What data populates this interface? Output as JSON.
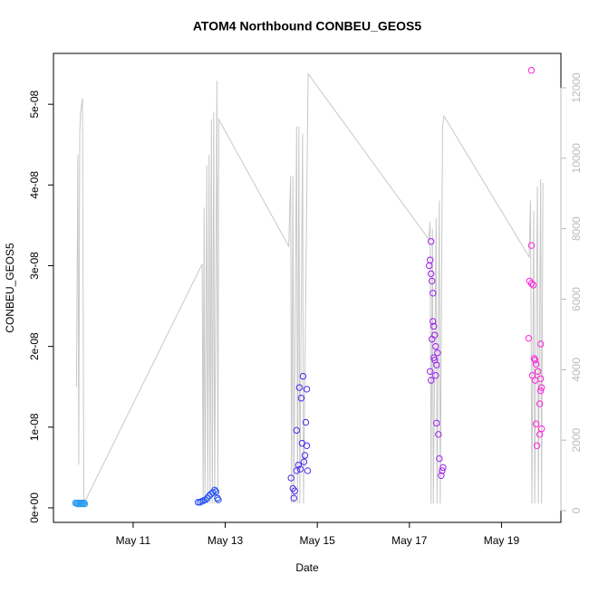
{
  "chart_data": {
    "type": "scatter",
    "title": "ATOM4 Northbound CONBEU_GEOS5",
    "xlabel": "Date",
    "ylabel": "CONBEU_GEOS5",
    "xlim": [
      9.27,
      20.29
    ],
    "ylim": [
      -1.8e-09,
      5.63e-08
    ],
    "y2lim": [
      -334,
      12975
    ],
    "xticks": [
      {
        "value": 11,
        "label": "May 11"
      },
      {
        "value": 13,
        "label": "May 13"
      },
      {
        "value": 15,
        "label": "May 15"
      },
      {
        "value": 17,
        "label": "May 17"
      },
      {
        "value": 19,
        "label": "May 19"
      }
    ],
    "yticks": [
      {
        "value": 0,
        "label": "0e+00"
      },
      {
        "value": 1e-08,
        "label": "1e-08"
      },
      {
        "value": 2e-08,
        "label": "2e-08"
      },
      {
        "value": 3e-08,
        "label": "3e-08"
      },
      {
        "value": 4e-08,
        "label": "4e-08"
      },
      {
        "value": 5e-08,
        "label": "5e-08"
      }
    ],
    "y2ticks": [
      0,
      2000,
      4000,
      6000,
      8000,
      10000,
      12000
    ],
    "y2color": "#bbbbbb",
    "series": [
      {
        "type": "line",
        "axis": "y2",
        "color": "#c8c8c8",
        "x": [
          9.77,
          9.8,
          9.82,
          9.84,
          9.86,
          9.9,
          9.93,
          12.5,
          12.52,
          12.54,
          12.56,
          12.6,
          12.62,
          12.65,
          12.67,
          12.7,
          12.72,
          12.75,
          12.77,
          12.82,
          12.84,
          12.86,
          14.38,
          14.42,
          14.44,
          14.47,
          14.49,
          14.55,
          14.57,
          14.6,
          14.62,
          14.68,
          14.7,
          14.8,
          17.42,
          17.45,
          17.47,
          17.5,
          17.52,
          17.58,
          17.6,
          17.65,
          17.67,
          17.72,
          17.75,
          19.6,
          19.63,
          19.66,
          19.7,
          19.72,
          19.78,
          19.8,
          19.85,
          19.87,
          19.9
        ],
        "values": [
          3500,
          10100,
          1300,
          10700,
          11300,
          11700,
          200,
          7000,
          200,
          8600,
          200,
          9800,
          200,
          10100,
          200,
          11100,
          200,
          11300,
          200,
          12200,
          200,
          11100,
          7500,
          9500,
          200,
          9500,
          200,
          10900,
          200,
          10900,
          200,
          10700,
          200,
          12400,
          7700,
          8200,
          200,
          8000,
          200,
          8300,
          200,
          8800,
          200,
          10900,
          11200,
          7200,
          8800,
          200,
          8500,
          200,
          9200,
          200,
          9400,
          200,
          9300
        ]
      },
      {
        "type": "scatter",
        "color": "#2b9cf0",
        "x": [
          9.75,
          9.77,
          9.79,
          9.81,
          9.83,
          9.85,
          9.87,
          9.89,
          9.91,
          9.93,
          9.95
        ],
        "values": [
          6e-10,
          6e-10,
          5e-10,
          6e-10,
          5e-10,
          6e-10,
          5e-10,
          6e-10,
          5e-10,
          6e-10,
          5e-10
        ]
      },
      {
        "type": "scatter",
        "color": "#1c4cf5",
        "x": [
          12.41,
          12.45,
          12.49,
          12.53,
          12.57,
          12.61,
          12.65,
          12.69,
          12.73,
          12.77,
          12.8,
          12.83,
          12.85
        ],
        "values": [
          7e-10,
          7e-10,
          8e-10,
          9e-10,
          1e-09,
          1.2e-09,
          1.5e-09,
          1.7e-09,
          1.9e-09,
          2.2e-09,
          2e-09,
          1.2e-09,
          1e-09
        ]
      },
      {
        "type": "scatter",
        "color": "#4a2cf0",
        "x": [
          14.43,
          14.47,
          14.49,
          14.51,
          14.55,
          14.61,
          14.63,
          14.65,
          14.67,
          14.69,
          14.73,
          14.75,
          14.77,
          14.77,
          14.79,
          14.59,
          14.55,
          14.71
        ],
        "values": [
          3.7e-09,
          2.4e-09,
          1.2e-09,
          2.1e-09,
          9.6e-09,
          1.49e-08,
          4.8e-09,
          1.36e-08,
          8e-09,
          1.63e-08,
          6.5e-09,
          1.06e-08,
          1.47e-08,
          7.7e-09,
          4.6e-09,
          5.3e-09,
          4.6e-09,
          5.7e-09
        ]
      },
      {
        "type": "scatter",
        "color": "#a020f0",
        "x": [
          17.47,
          17.45,
          17.43,
          17.47,
          17.49,
          17.51,
          17.51,
          17.53,
          17.49,
          17.57,
          17.61,
          17.55,
          17.59,
          17.45,
          17.47,
          17.59,
          17.63,
          17.65,
          17.73,
          17.71,
          17.69,
          17.55,
          17.53,
          17.57
        ],
        "values": [
          3.3e-08,
          3.07e-08,
          3e-08,
          2.9e-08,
          2.81e-08,
          2.66e-08,
          2.31e-08,
          2.25e-08,
          2.09e-08,
          2e-08,
          1.92e-08,
          1.83e-08,
          1.77e-08,
          1.69e-08,
          1.58e-08,
          1.05e-08,
          9.1e-09,
          6.1e-09,
          5e-09,
          4.6e-09,
          4e-09,
          2.14e-08,
          1.86e-08,
          1.64e-08
        ]
      },
      {
        "type": "scatter",
        "color": "#ff22dd",
        "x": [
          19.65,
          19.65,
          19.61,
          19.65,
          19.69,
          19.59,
          19.85,
          19.71,
          19.73,
          19.75,
          19.79,
          19.67,
          19.85,
          19.73,
          19.87,
          19.85,
          19.83,
          19.75,
          19.87,
          19.83,
          19.77
        ],
        "values": [
          5.42e-08,
          3.25e-08,
          2.81e-08,
          2.78e-08,
          2.76e-08,
          2.1e-08,
          2.03e-08,
          1.85e-08,
          1.83e-08,
          1.78e-08,
          1.69e-08,
          1.64e-08,
          1.6e-08,
          1.58e-08,
          1.49e-08,
          1.45e-08,
          1.29e-08,
          1.04e-08,
          9.8e-09,
          9.1e-09,
          7.7e-09
        ]
      }
    ]
  }
}
